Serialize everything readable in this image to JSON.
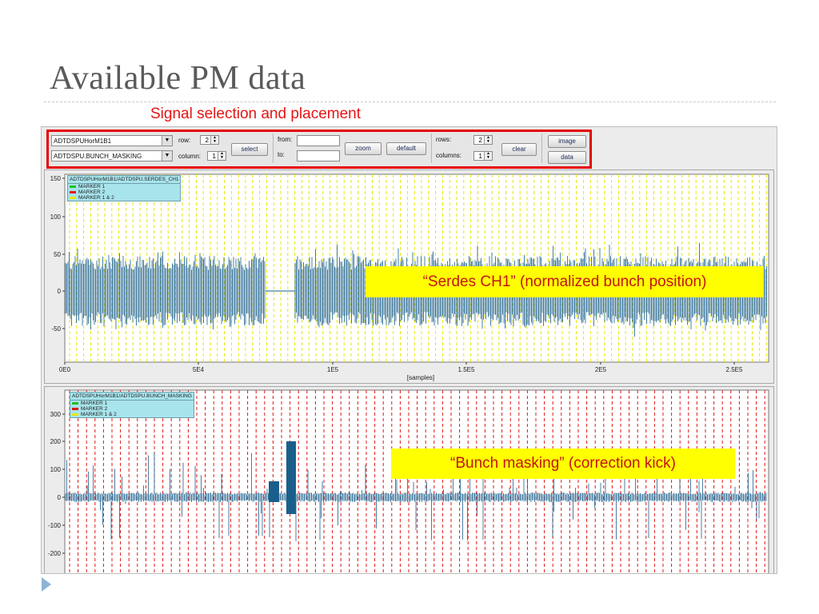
{
  "slide": {
    "title": "Available PM data",
    "subtitle": "Signal selection and placement"
  },
  "toolbar": {
    "signal_1": "ADTDSPUHorM1B1",
    "signal_2": "ADTDSPU.BUNCH_MASKING",
    "row_label": "row:",
    "row_value": "2",
    "column_label": "column:",
    "column_value": "1",
    "select_label": "select",
    "from_label": "from:",
    "to_label": "to:",
    "zoom_label": "zoom",
    "default_label": "default",
    "rows_label": "rows:",
    "rows_value": "2",
    "columns_label": "columns:",
    "columns_value": "1",
    "clear_label": "clear",
    "image_label": "image",
    "data_label": "data"
  },
  "plot1": {
    "legend_title": "ADTDSPUHorM1B1/ADTDSPU.SERDES_CH1",
    "legend_items": [
      "MARKER 1",
      "MARKER 2",
      "MARKER 1 & 2"
    ],
    "y_ticks": [
      "150",
      "100",
      "50",
      "0",
      "-50"
    ],
    "x_ticks": [
      "0E0",
      "5E4",
      "1E5",
      "1.5E5",
      "2E5",
      "2.5E5"
    ],
    "x_label": "[samples]",
    "callout": "“Serdes CH1” (normalized bunch position)"
  },
  "plot2": {
    "legend_title": "ADTDSPUHorM1B1/ADTDSPU.BUNCH_MASKING",
    "legend_items": [
      "MARKER 1",
      "MARKER 2",
      "MARKER 1 & 2"
    ],
    "y_ticks": [
      "300",
      "200",
      "100",
      "0",
      "-100",
      "-200"
    ],
    "callout": "“Bunch masking” (correction kick)"
  },
  "colors": {
    "signal": "#1a5f8c",
    "marker1": "#e8e800",
    "marker2": "#e01818",
    "marker1_legend": "#22c022",
    "callout_bg": "#ffff00",
    "callout_text": "#c41414",
    "title": "#5a5a5a",
    "subtitle": "#e41515",
    "highlight_border": "#e60000"
  },
  "icons": {
    "bullet": "triangle-bullet-icon",
    "combo_arrow": "chevron-down-icon"
  }
}
